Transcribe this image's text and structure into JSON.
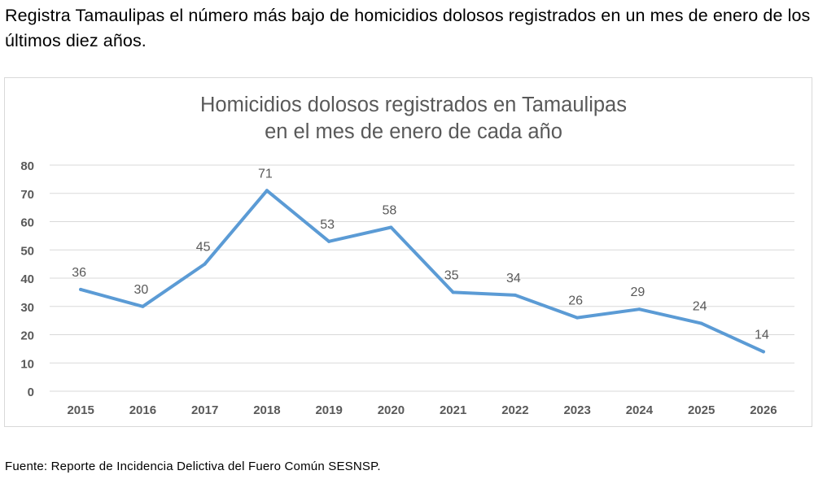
{
  "headline": "Registra Tamaulipas el número más bajo de homicidios dolosos registrados en un mes de enero de los últimos diez años.",
  "source_note": "Fuente: Reporte de Incidencia Delictiva del Fuero Común SESNSP.",
  "colors": {
    "line": "#5b9bd5",
    "grid": "#d9d9d9",
    "title": "#595959",
    "axis_text": "#595959"
  },
  "chart_data": {
    "type": "line",
    "title_lines": [
      "Homicidios dolosos registrados en Tamaulipas",
      "en el mes de enero de cada año"
    ],
    "categories": [
      "2015",
      "2016",
      "2017",
      "2018",
      "2019",
      "2020",
      "2021",
      "2022",
      "2023",
      "2024",
      "2025",
      "2026"
    ],
    "series": [
      {
        "values": [
          36,
          30,
          45,
          71,
          53,
          58,
          35,
          34,
          26,
          29,
          24,
          14
        ]
      }
    ],
    "data_labels": [
      "36",
      "30",
      "45",
      "71",
      "53",
      "58",
      "35",
      "34",
      "26",
      "29",
      "24",
      "14"
    ],
    "ylim": [
      0,
      80
    ],
    "yticks": [
      0,
      10,
      20,
      30,
      40,
      50,
      60,
      70,
      80
    ],
    "grid": true,
    "legend": "none"
  }
}
